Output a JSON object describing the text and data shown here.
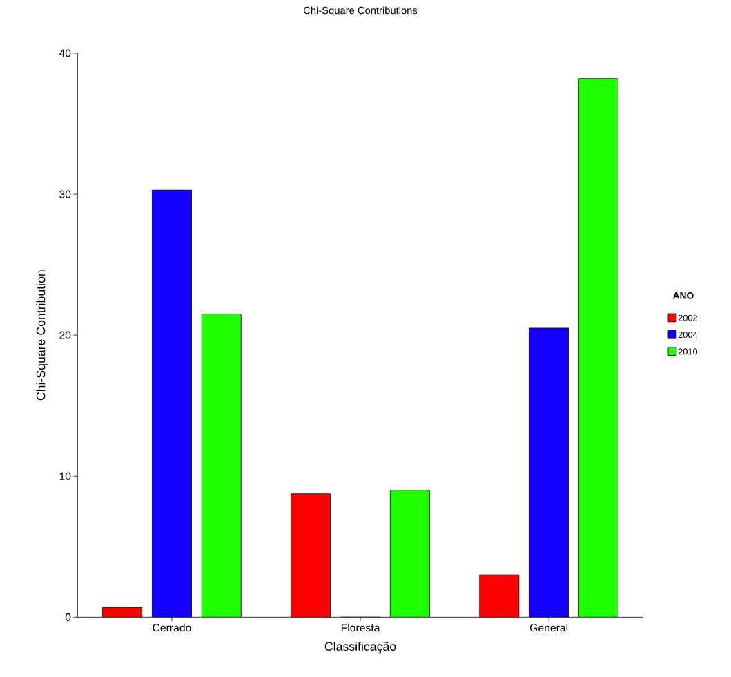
{
  "chart_data": {
    "type": "bar",
    "title": "Chi-Square Contributions",
    "xlabel": "Classificação",
    "ylabel": "Chi-Square Contribution",
    "legend_title": "ANO",
    "categories": [
      "Cerrado",
      "Floresta",
      "General"
    ],
    "series": [
      {
        "name": "2002",
        "color": "#ff0000",
        "values": [
          0.7,
          8.75,
          3.0
        ]
      },
      {
        "name": "2004",
        "color": "#1400ff",
        "values": [
          30.3,
          0,
          20.5
        ]
      },
      {
        "name": "2010",
        "color": "#1eff00",
        "values": [
          21.5,
          9.0,
          38.2
        ]
      }
    ],
    "ylim": [
      0,
      40
    ],
    "yticks": [
      0,
      10,
      20,
      30,
      40
    ],
    "grid": false,
    "legend": "right"
  }
}
